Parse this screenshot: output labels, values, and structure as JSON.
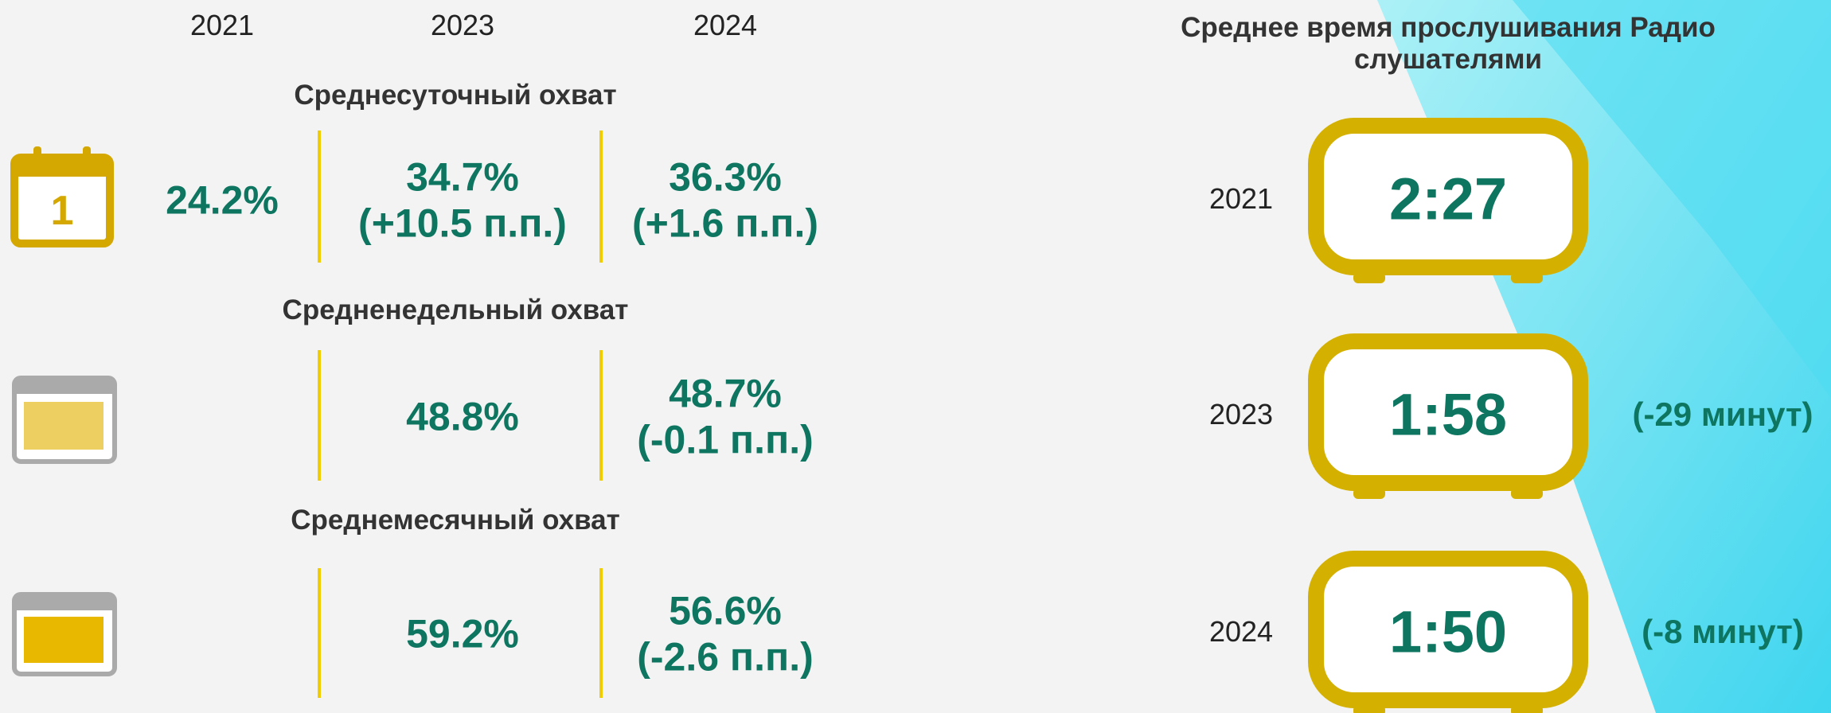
{
  "years": [
    "2021",
    "2023",
    "2024"
  ],
  "sections": [
    {
      "title": "Среднесуточный охват",
      "cells": [
        {
          "value": "24.2%"
        },
        {
          "value": "34.7%",
          "change": "(+10.5 п.п.)"
        },
        {
          "value": "36.3%",
          "change": "(+1.6 п.п.)"
        }
      ]
    },
    {
      "title": "Средненедельный охват",
      "cells": [
        {
          "value": "48.8%"
        },
        {
          "value": "48.7%",
          "change": "(-0.1 п.п.)"
        }
      ]
    },
    {
      "title": "Среднемесячный охват",
      "cells": [
        {
          "value": "59.2%"
        },
        {
          "value": "56.6%",
          "change": "(-2.6 п.п.)"
        }
      ]
    }
  ],
  "listening": {
    "title": "Среднее время прослушивания Радио слушателями",
    "rows": [
      {
        "year": "2021",
        "time": "2:27"
      },
      {
        "year": "2023",
        "time": "1:58",
        "change": "(-29 минут)"
      },
      {
        "year": "2024",
        "time": "1:50",
        "change": "(-8 минут)"
      }
    ]
  }
}
